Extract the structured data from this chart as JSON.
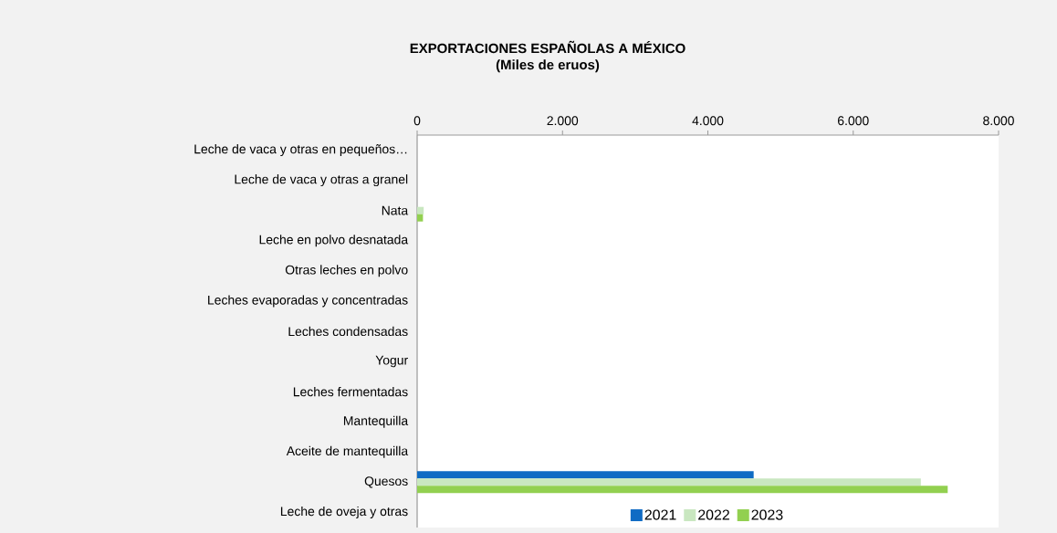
{
  "chart_data": {
    "type": "bar",
    "orientation": "horizontal",
    "title": "EXPORTACIONES ESPAÑOLAS A MÉXICO",
    "subtitle": "(Miles de eruos)",
    "categories": [
      "Leche de vaca y otras en pequeños…",
      "Leche de vaca y otras a granel",
      "Nata",
      "Leche en polvo desnatada",
      "Otras leches en polvo",
      "Leches evaporadas y concentradas",
      "Leches condensadas",
      "Yogur",
      "Leches fermentadas",
      "Mantequilla",
      "Aceite de mantequilla",
      "Quesos",
      "Leche de oveja y otras"
    ],
    "series": [
      {
        "name": "2021",
        "color": "#0f6bc4",
        "values": [
          0,
          0,
          0,
          0,
          0,
          0,
          0,
          0,
          0,
          0,
          0,
          4630,
          0
        ]
      },
      {
        "name": "2022",
        "color": "#c9e7c0",
        "values": [
          0,
          null,
          90,
          0,
          0,
          0,
          0,
          0,
          0,
          0,
          0,
          6930,
          0
        ]
      },
      {
        "name": "2023",
        "color": "#92d050",
        "values": [
          0,
          0,
          80,
          0,
          0,
          0,
          0,
          0,
          0,
          0,
          0,
          7300,
          0
        ]
      }
    ],
    "xlim": [
      0,
      8000
    ],
    "xticks": [
      {
        "value": 0,
        "label": "0"
      },
      {
        "value": 2000,
        "label": "2.000"
      },
      {
        "value": 4000,
        "label": "4.000"
      },
      {
        "value": 6000,
        "label": "6.000"
      },
      {
        "value": 8000,
        "label": "8.000"
      }
    ],
    "legend": "bottom",
    "grid": false
  }
}
